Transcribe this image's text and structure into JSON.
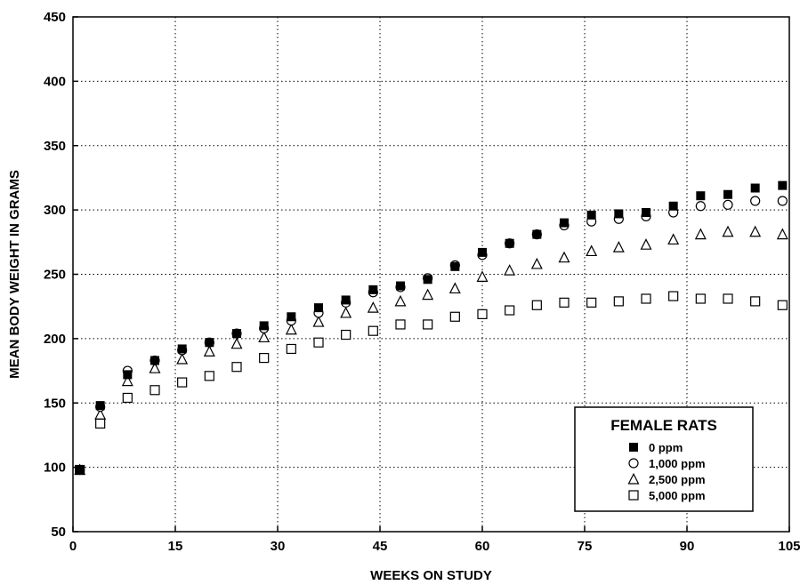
{
  "chart_data": {
    "type": "scatter",
    "xlabel": "WEEKS ON STUDY",
    "ylabel": "MEAN BODY WEIGHT IN GRAMS",
    "xlim": [
      0,
      105
    ],
    "ylim": [
      50,
      450
    ],
    "xticks": [
      0,
      15,
      30,
      45,
      60,
      75,
      90,
      105
    ],
    "yticks": [
      50,
      100,
      150,
      200,
      250,
      300,
      350,
      400,
      450
    ],
    "grid": "dotted",
    "legend": {
      "title": "FEMALE RATS",
      "placement": "bottom-right"
    },
    "x": [
      1,
      4,
      8,
      12,
      16,
      20,
      24,
      28,
      32,
      36,
      40,
      44,
      48,
      52,
      56,
      60,
      64,
      68,
      72,
      76,
      80,
      84,
      88,
      92,
      96,
      100,
      104
    ],
    "series": [
      {
        "name": "0 ppm",
        "marker": "filled-square",
        "values": [
          98,
          148,
          172,
          183,
          192,
          197,
          204,
          210,
          217,
          224,
          230,
          238,
          241,
          246,
          256,
          267,
          274,
          281,
          290,
          296,
          297,
          298,
          303,
          311,
          312,
          317,
          319
        ]
      },
      {
        "name": "1,000 ppm",
        "marker": "open-circle",
        "values": [
          98,
          147,
          175,
          183,
          191,
          197,
          204,
          208,
          214,
          220,
          228,
          236,
          240,
          247,
          257,
          265,
          274,
          281,
          288,
          291,
          293,
          295,
          298,
          303,
          304,
          307,
          307
        ]
      },
      {
        "name": "2,500 ppm",
        "marker": "open-triangle",
        "values": [
          98,
          141,
          167,
          177,
          184,
          190,
          196,
          201,
          207,
          213,
          220,
          224,
          229,
          234,
          239,
          248,
          253,
          258,
          263,
          268,
          271,
          273,
          277,
          281,
          283,
          283,
          281
        ]
      },
      {
        "name": "5,000 ppm",
        "marker": "open-square",
        "values": [
          98,
          134,
          154,
          160,
          166,
          171,
          178,
          185,
          192,
          197,
          203,
          206,
          211,
          211,
          217,
          219,
          222,
          226,
          228,
          228,
          229,
          231,
          233,
          231,
          231,
          229,
          226
        ]
      }
    ]
  }
}
